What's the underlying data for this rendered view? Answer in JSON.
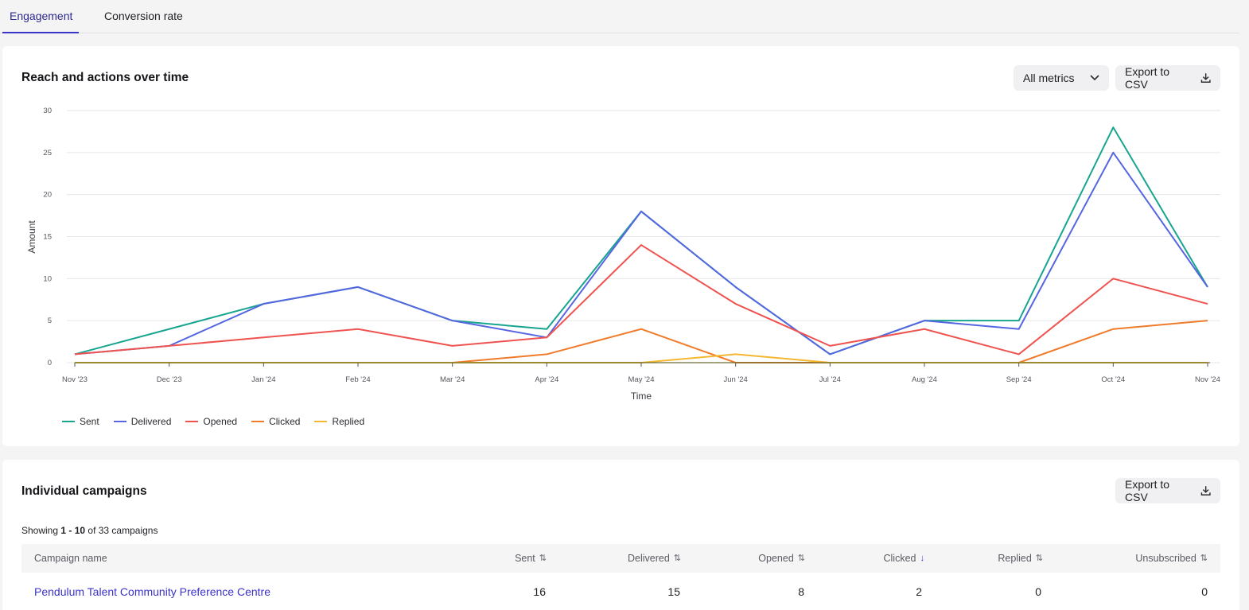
{
  "tabs": [
    {
      "label": "Engagement",
      "active": true
    },
    {
      "label": "Conversion rate",
      "active": false
    }
  ],
  "chart_section": {
    "title": "Reach and actions over time",
    "metrics_select": "All metrics",
    "export_label": "Export to CSV"
  },
  "chart_data": {
    "type": "line",
    "categories": [
      "Nov '23",
      "Dec '23",
      "Jan '24",
      "Feb '24",
      "Mar '24",
      "Apr '24",
      "May '24",
      "Jun '24",
      "Jul '24",
      "Aug '24",
      "Sep '24",
      "Oct '24",
      "Nov '24"
    ],
    "series": [
      {
        "name": "Sent",
        "color": "#17a58f",
        "values": [
          1,
          4,
          7,
          9,
          5,
          4,
          18,
          9,
          1,
          5,
          5,
          28,
          9
        ]
      },
      {
        "name": "Delivered",
        "color": "#5566e0",
        "values": [
          1,
          2,
          7,
          9,
          5,
          3,
          18,
          9,
          1,
          5,
          4,
          25,
          9
        ]
      },
      {
        "name": "Opened",
        "color": "#ef5350",
        "values": [
          1,
          2,
          3,
          4,
          2,
          3,
          14,
          7,
          2,
          4,
          1,
          10,
          7
        ]
      },
      {
        "name": "Clicked",
        "color": "#f07b2a",
        "values": [
          0,
          0,
          0,
          0,
          0,
          1,
          4,
          0,
          0,
          0,
          0,
          4,
          5
        ]
      },
      {
        "name": "Replied",
        "color": "#f5b730",
        "values": [
          0,
          0,
          0,
          0,
          0,
          0,
          0,
          1,
          0,
          0,
          0,
          0,
          0
        ]
      }
    ],
    "xlabel": "Time",
    "ylabel": "Amount",
    "ylim": [
      0,
      30
    ],
    "yticks": [
      0,
      5,
      10,
      15,
      20,
      25,
      30
    ],
    "grid": true,
    "legend": "bottom-left"
  },
  "campaigns_section": {
    "title": "Individual campaigns",
    "export_label": "Export to CSV",
    "showing_prefix": "Showing ",
    "showing_range": "1 - 10",
    "showing_suffix": " of 33 campaigns",
    "columns": [
      "Campaign name",
      "Sent",
      "Delivered",
      "Opened",
      "Clicked",
      "Replied",
      "Unsubscribed"
    ],
    "sorted_column": "Clicked",
    "rows": [
      {
        "name": "Pendulum Talent Community Preference Centre",
        "sent": "16",
        "delivered": "15",
        "opened": "8",
        "clicked": "2",
        "replied": "0",
        "unsubscribed": "0"
      }
    ]
  }
}
